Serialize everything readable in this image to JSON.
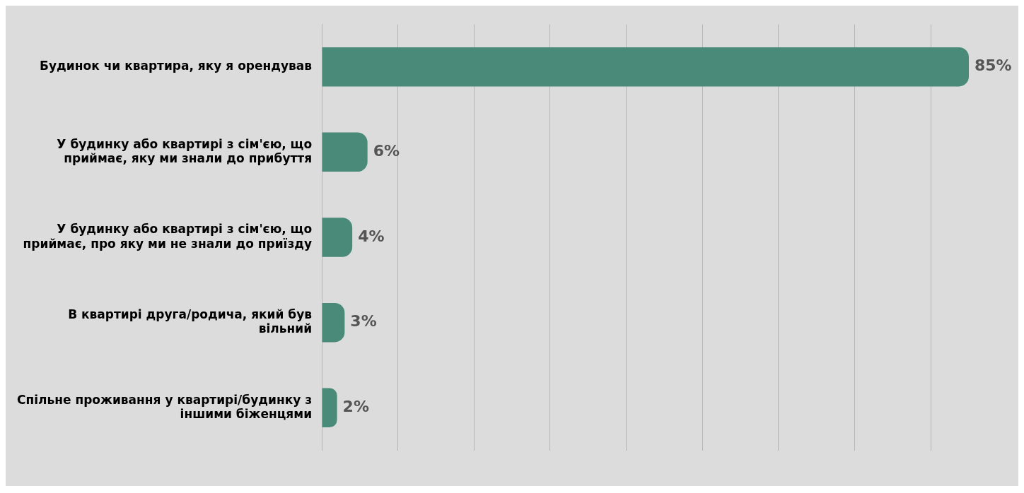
{
  "chart_data": {
    "type": "bar",
    "orientation": "horizontal",
    "categories": [
      "Будинок чи квартира, яку я орендував",
      "У будинку або квартирі з сім'єю, що приймає, яку ми знали до прибуття",
      "У будинку або квартирі з сім'єю, що приймає, про яку ми не знали до приїзду",
      "В квартирі друга/родича, який був вільний",
      "Спільне проживання у квартирі/будинку з іншими біженцями"
    ],
    "values": [
      85,
      6,
      4,
      3,
      2
    ],
    "value_labels": [
      "85%",
      "6%",
      "4%",
      "3%",
      "2%"
    ],
    "color": "#4a8a78",
    "xlim": [
      0,
      85
    ],
    "xticks": [
      {
        "value": 0,
        "label": null
      },
      {
        "value": 10,
        "label": null
      },
      {
        "value": 20,
        "label": null
      },
      {
        "value": 30,
        "label": null
      },
      {
        "value": 40,
        "label": null
      },
      {
        "value": 50,
        "label": null
      },
      {
        "value": 60,
        "label": null
      },
      {
        "value": 70,
        "label": null
      },
      {
        "value": 80,
        "label": null
      }
    ],
    "grid": "x",
    "legend": false
  }
}
